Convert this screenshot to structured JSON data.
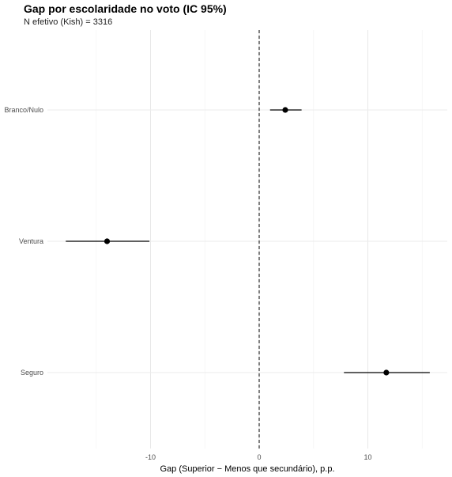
{
  "chart_data": {
    "type": "scatter",
    "title": "Gap por escolaridade no voto (IC 95%)",
    "subtitle": "N efetivo (Kish) = 3316",
    "xlabel": "Gap (Superior − Menos que secundário), p.p.",
    "ylabel": "",
    "xlim": [
      -17.8,
      17.2
    ],
    "x_ticks": [
      -10,
      0,
      10
    ],
    "x_tick_labels": [
      "-10",
      "0",
      "10"
    ],
    "reference_line": {
      "x": 0,
      "style": "dashed"
    },
    "grid": true,
    "categories": [
      "Branco/Nulo",
      "Ventura",
      "Seguro"
    ],
    "points": [
      {
        "category": "Branco/Nulo",
        "estimate": 2.4,
        "ci_low": 1.0,
        "ci_high": 3.9
      },
      {
        "category": "Ventura",
        "estimate": -14.0,
        "ci_low": -17.8,
        "ci_high": -10.1
      },
      {
        "category": "Seguro",
        "estimate": 11.7,
        "ci_low": 7.8,
        "ci_high": 15.7
      }
    ]
  }
}
